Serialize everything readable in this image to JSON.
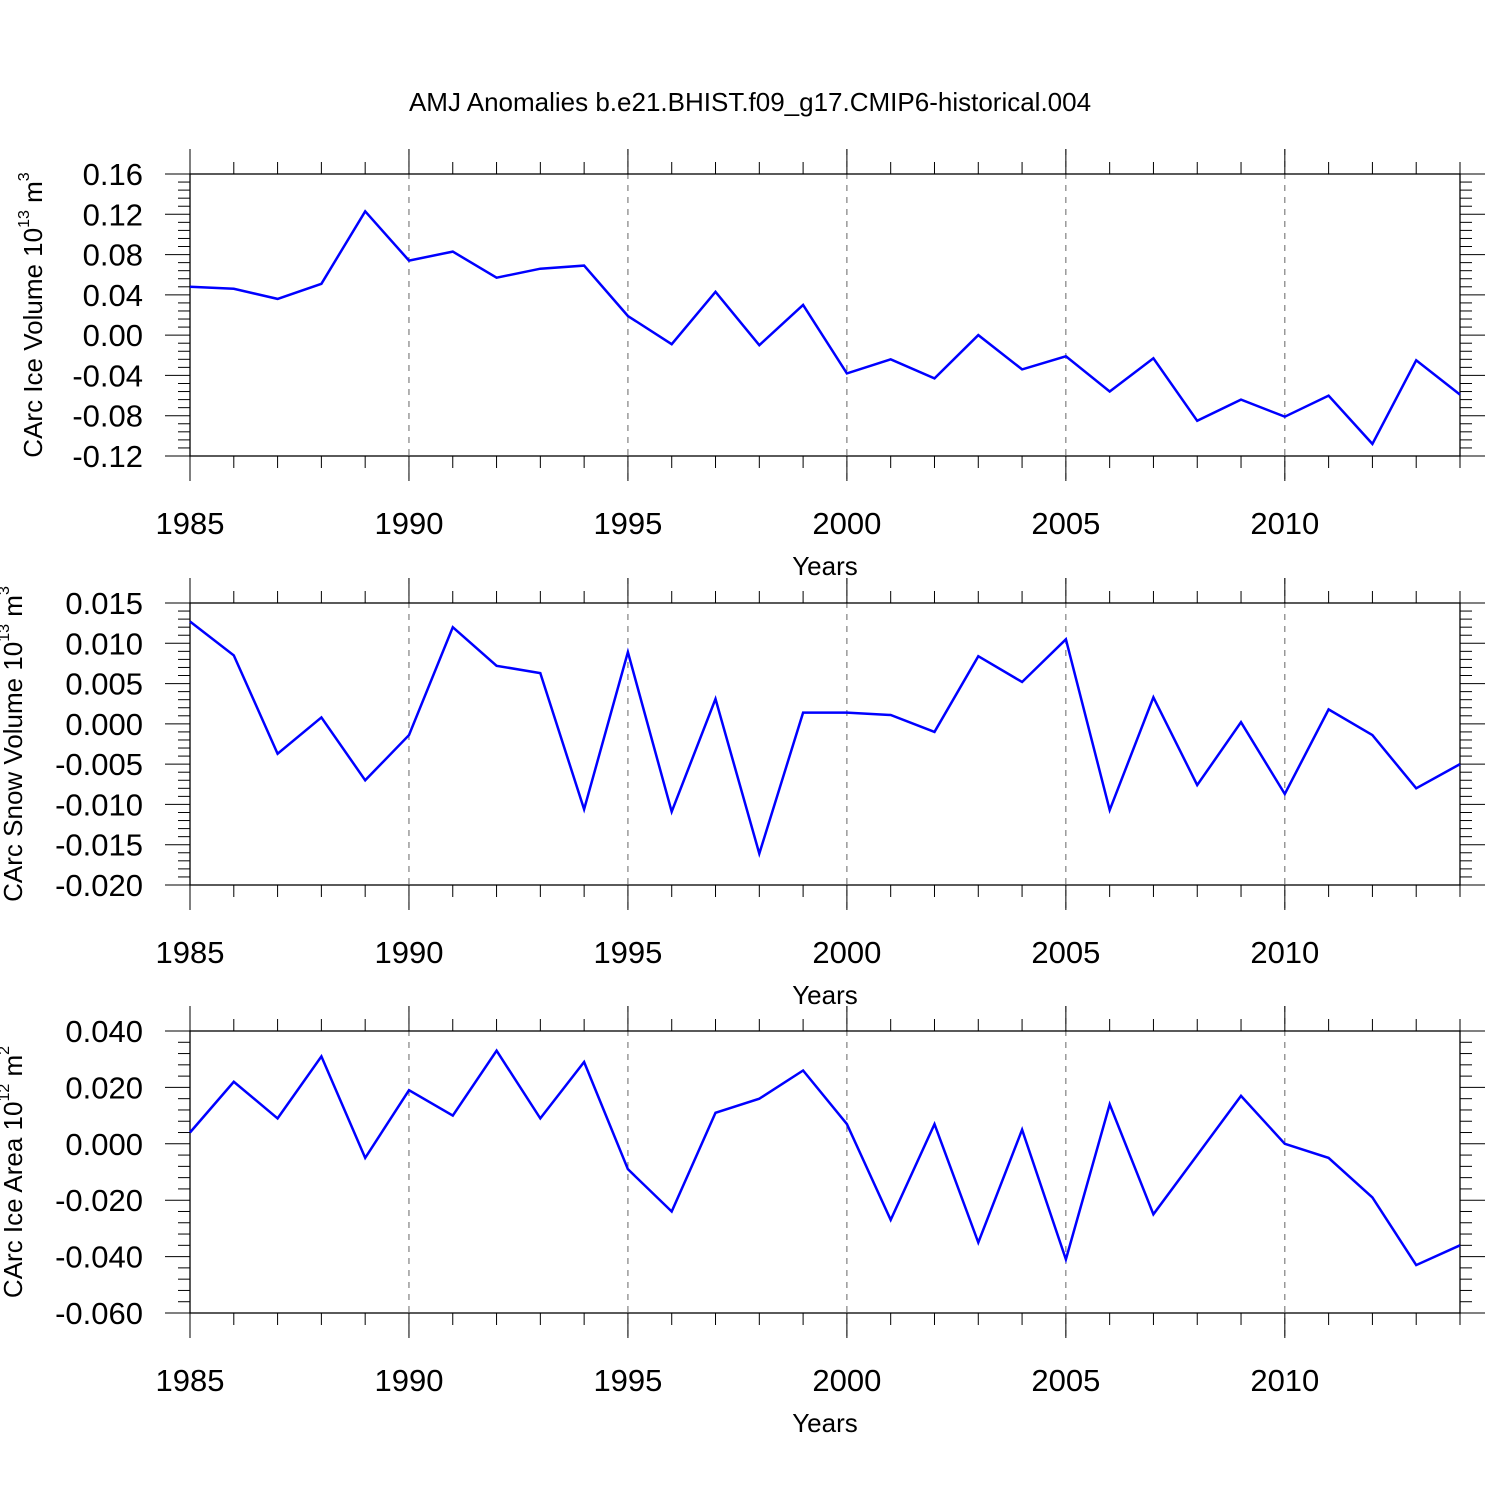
{
  "title": "AMJ Anomalies b.e21.BHIST.f09_g17.CMIP6-historical.004",
  "colors": {
    "line": "#0000ff",
    "axis": "#000000",
    "grid": "#666666"
  },
  "chart_data": [
    {
      "type": "line",
      "ylabel": {
        "text": "CArc Ice Volume 10",
        "sup": "13",
        "unit": " m",
        "unit_sup": "3"
      },
      "xlabel": "Years",
      "xlim": [
        1985,
        2014
      ],
      "ylim": [
        -0.12,
        0.16
      ],
      "x_ticks": [
        1985,
        1990,
        1995,
        2000,
        2005,
        2010
      ],
      "y_ticks": [
        "0.16",
        "0.12",
        "0.08",
        "0.04",
        "0.00",
        "-0.04",
        "-0.08",
        "-0.12"
      ],
      "grid": "vertical dashed at major x ticks",
      "x": [
        1985,
        1986,
        1987,
        1988,
        1989,
        1990,
        1991,
        1992,
        1993,
        1994,
        1995,
        1996,
        1997,
        1998,
        1999,
        2000,
        2001,
        2002,
        2003,
        2004,
        2005,
        2006,
        2007,
        2008,
        2009,
        2010,
        2011,
        2012,
        2013,
        2014
      ],
      "values": [
        0.048,
        0.046,
        0.036,
        0.051,
        0.123,
        0.074,
        0.083,
        0.057,
        0.066,
        0.069,
        0.019,
        -0.009,
        0.043,
        -0.01,
        0.03,
        -0.038,
        -0.024,
        -0.043,
        0.0,
        -0.034,
        -0.021,
        -0.056,
        -0.023,
        -0.085,
        -0.064,
        -0.081,
        -0.06,
        -0.108,
        -0.025,
        -0.059
      ]
    },
    {
      "type": "line",
      "ylabel": {
        "text": "CArc Snow Volume 10",
        "sup": "13",
        "unit": " m",
        "unit_sup": "3"
      },
      "xlabel": "Years",
      "xlim": [
        1985,
        2014
      ],
      "ylim": [
        -0.02,
        0.015
      ],
      "x_ticks": [
        1985,
        1990,
        1995,
        2000,
        2005,
        2010
      ],
      "y_ticks": [
        "0.015",
        "0.010",
        "0.005",
        "0.000",
        "-0.005",
        "-0.010",
        "-0.015",
        "-0.020"
      ],
      "grid": "vertical dashed at major x ticks",
      "x": [
        1985,
        1986,
        1987,
        1988,
        1989,
        1990,
        1991,
        1992,
        1993,
        1994,
        1995,
        1996,
        1997,
        1998,
        1999,
        2000,
        2001,
        2002,
        2003,
        2004,
        2005,
        2006,
        2007,
        2008,
        2009,
        2010,
        2011,
        2012,
        2013,
        2014
      ],
      "values": [
        0.0127,
        0.0085,
        -0.0037,
        0.0008,
        -0.007,
        -0.0014,
        0.012,
        0.0072,
        0.0063,
        -0.0106,
        0.0089,
        -0.0109,
        0.0031,
        -0.0161,
        0.0014,
        0.0014,
        0.0011,
        -0.001,
        0.0084,
        0.0052,
        0.0105,
        -0.0107,
        0.0033,
        -0.0076,
        0.0002,
        -0.0087,
        0.0018,
        -0.0014,
        -0.008,
        -0.005
      ]
    },
    {
      "type": "line",
      "ylabel": {
        "text": "CArc Ice Area 10",
        "sup": "12",
        "unit": " m",
        "unit_sup": "2"
      },
      "xlabel": "Years",
      "xlim": [
        1985,
        2014
      ],
      "ylim": [
        -0.06,
        0.04
      ],
      "x_ticks": [
        1985,
        1990,
        1995,
        2000,
        2005,
        2010
      ],
      "y_ticks": [
        "0.040",
        "0.020",
        "0.000",
        "-0.020",
        "-0.040",
        "-0.060"
      ],
      "grid": "vertical dashed at major x ticks",
      "x": [
        1985,
        1986,
        1987,
        1988,
        1989,
        1990,
        1991,
        1992,
        1993,
        1994,
        1995,
        1996,
        1997,
        1998,
        1999,
        2000,
        2001,
        2002,
        2003,
        2004,
        2005,
        2006,
        2007,
        2008,
        2009,
        2010,
        2011,
        2012,
        2013,
        2014
      ],
      "values": [
        0.004,
        0.022,
        0.009,
        0.031,
        -0.005,
        0.019,
        0.01,
        0.033,
        0.009,
        0.029,
        -0.009,
        -0.024,
        0.011,
        0.016,
        0.026,
        0.007,
        -0.027,
        0.007,
        -0.035,
        0.005,
        -0.041,
        0.014,
        -0.025,
        -0.004,
        0.017,
        0.0,
        -0.005,
        -0.019,
        -0.043,
        -0.036
      ]
    }
  ]
}
